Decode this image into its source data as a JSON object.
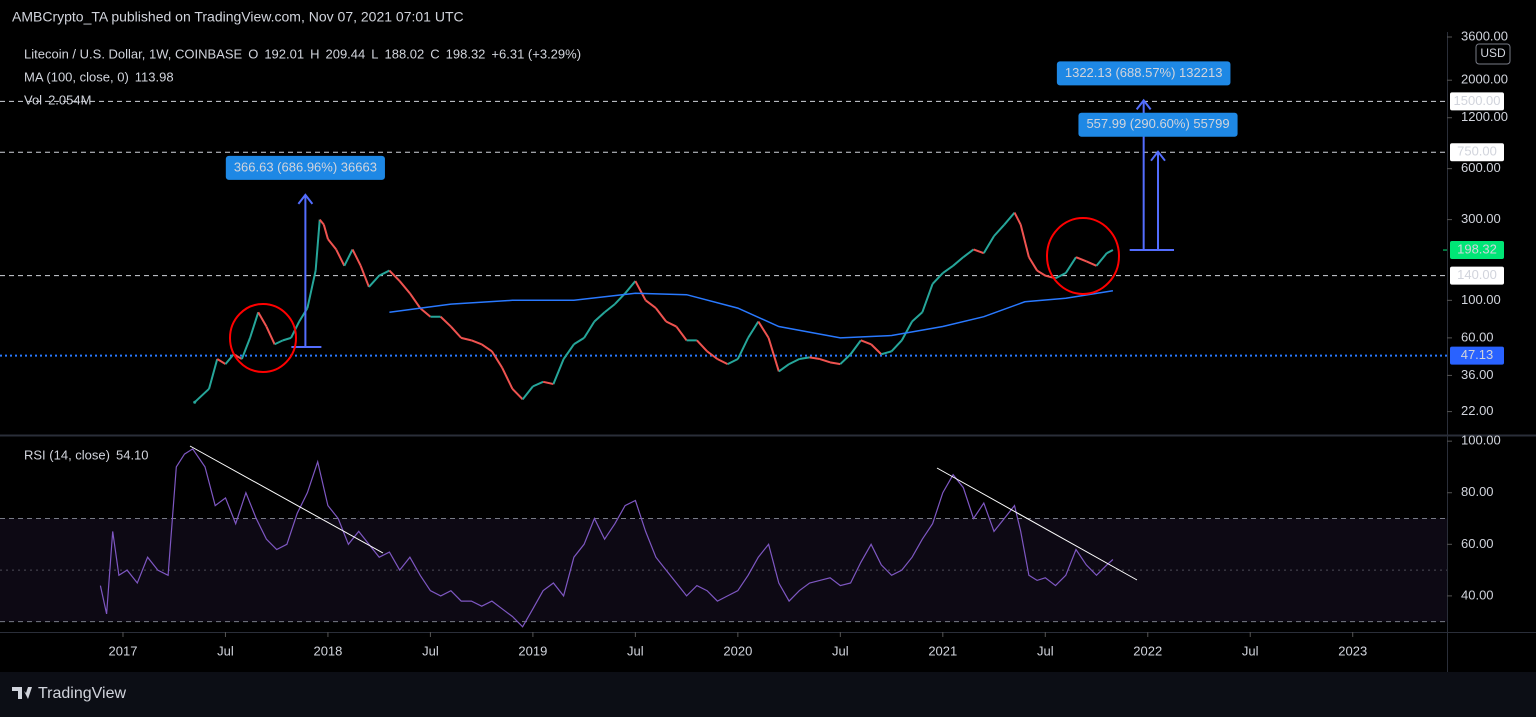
{
  "header": "AMBCrypto_TA published on TradingView.com, Nov 07, 2021 07:01 UTC",
  "footer": "TradingView",
  "chart_data": [
    {
      "type": "line",
      "log_scale": true,
      "xlim": [
        2016.4,
        2023.46
      ],
      "ylim": [
        16,
        3700
      ],
      "yticks": [
        {
          "value": 22,
          "label": "22.00"
        },
        {
          "value": 36,
          "label": "36.00"
        },
        {
          "value": 60,
          "label": "60.00"
        },
        {
          "value": 100,
          "label": "100.00"
        },
        {
          "value": 300,
          "label": "300.00"
        },
        {
          "value": 600,
          "label": "600.00"
        },
        {
          "value": 1200,
          "label": "1200.00"
        },
        {
          "value": 2000,
          "label": "2000.00"
        },
        {
          "value": 3600,
          "label": "3600.00"
        }
      ],
      "currency": "USD",
      "ohlc": [
        {
          "label": "O",
          "value": "192.01"
        },
        {
          "label": "H",
          "value": "209.44"
        },
        {
          "label": "L",
          "value": "188.02"
        },
        {
          "label": "C",
          "value": "198.32"
        }
      ],
      "change": "+6.31 (+3.29%)",
      "ma_value": "113.98",
      "volume_name": "Vol",
      "volume_value": "2.054M",
      "series": [
        {
          "name": "Litecoin / U.S. Dollar, 1W, COINBASE",
          "up_color": "#26a69a",
          "down_color": "#ef5350",
          "x": [
            2017.35,
            2017.42,
            2017.46,
            2017.5,
            2017.54,
            2017.58,
            2017.62,
            2017.66,
            2017.7,
            2017.74,
            2017.78,
            2017.82,
            2017.86,
            2017.9,
            2017.94,
            2017.96,
            2017.98,
            2018.0,
            2018.04,
            2018.08,
            2018.12,
            2018.16,
            2018.2,
            2018.25,
            2018.3,
            2018.35,
            2018.4,
            2018.45,
            2018.5,
            2018.55,
            2018.6,
            2018.65,
            2018.7,
            2018.75,
            2018.8,
            2018.85,
            2018.9,
            2018.95,
            2019.0,
            2019.05,
            2019.1,
            2019.15,
            2019.2,
            2019.25,
            2019.3,
            2019.35,
            2019.4,
            2019.45,
            2019.5,
            2019.55,
            2019.6,
            2019.65,
            2019.7,
            2019.75,
            2019.8,
            2019.85,
            2019.9,
            2019.95,
            2020.0,
            2020.05,
            2020.1,
            2020.15,
            2020.2,
            2020.25,
            2020.3,
            2020.35,
            2020.4,
            2020.45,
            2020.5,
            2020.55,
            2020.6,
            2020.65,
            2020.7,
            2020.75,
            2020.8,
            2020.85,
            2020.9,
            2020.95,
            2021.0,
            2021.05,
            2021.1,
            2021.15,
            2021.2,
            2021.25,
            2021.3,
            2021.35,
            2021.38,
            2021.42,
            2021.46,
            2021.5,
            2021.55,
            2021.6,
            2021.65,
            2021.7,
            2021.75,
            2021.8,
            2021.83
          ],
          "values": [
            25,
            30,
            45,
            42,
            48,
            45,
            60,
            85,
            70,
            55,
            58,
            60,
            75,
            90,
            150,
            300,
            280,
            230,
            200,
            160,
            200,
            160,
            120,
            140,
            150,
            130,
            110,
            90,
            80,
            80,
            70,
            60,
            58,
            55,
            50,
            40,
            30,
            26,
            31,
            33,
            32,
            45,
            55,
            60,
            75,
            85,
            95,
            110,
            130,
            100,
            90,
            75,
            70,
            58,
            58,
            50,
            45,
            42,
            45,
            60,
            75,
            60,
            38,
            42,
            45,
            46,
            45,
            43,
            42,
            48,
            58,
            55,
            48,
            50,
            58,
            75,
            85,
            125,
            145,
            160,
            180,
            200,
            190,
            240,
            280,
            330,
            280,
            180,
            150,
            140,
            135,
            145,
            180,
            170,
            160,
            190,
            198.32
          ]
        },
        {
          "name": "MA (100, close, 0)",
          "color": "#2979ff",
          "x": [
            2018.3,
            2018.6,
            2018.9,
            2019.2,
            2019.5,
            2019.75,
            2020.0,
            2020.2,
            2020.5,
            2020.75,
            2021.0,
            2021.2,
            2021.4,
            2021.6,
            2021.83
          ],
          "values": [
            85,
            95,
            100,
            100,
            110,
            108,
            90,
            70,
            60,
            62,
            70,
            80,
            98,
            103,
            113.98
          ]
        }
      ],
      "levels": [
        {
          "value": 1500,
          "label": "1500.00",
          "style": "dashed",
          "color": "#d1d4dc",
          "label_bg": "#ffffff",
          "label_color": "#000000"
        },
        {
          "value": 750,
          "label": "750.00",
          "style": "dashed",
          "color": "#d1d4dc",
          "label_bg": "#ffffff",
          "label_color": "#000000"
        },
        {
          "value": 140,
          "label": "140.00",
          "style": "dashed",
          "color": "#d1d4dc",
          "label_bg": "#ffffff",
          "label_color": "#000000"
        },
        {
          "value": 47.13,
          "label": "47.13",
          "style": "dotted",
          "color": "#2979ff",
          "label_bg": "#2962ff",
          "label_color": "#ffffff"
        }
      ],
      "last_price": {
        "value": 198.32,
        "label": "198.32",
        "label_bg": "#00e676",
        "label_color": "#000000"
      },
      "measures": [
        {
          "label": "366.63 (686.96%) 36663",
          "x": 2017.89,
          "from": 53,
          "to": 420
        },
        {
          "label": "1322.13 (688.57%) 132213",
          "x": 2021.98,
          "from": 198.32,
          "to": 1520
        },
        {
          "label": "557.99 (290.60%) 55799",
          "x": 2022.05,
          "from": 198.32,
          "to": 756
        }
      ]
    },
    {
      "type": "line",
      "name": "RSI (14, close)",
      "value_label": "54.10",
      "color": "#7e57c2",
      "xlim": [
        2016.4,
        2023.46
      ],
      "ylim": [
        26,
        102
      ],
      "yticks": [
        {
          "value": 40,
          "label": "40.00"
        },
        {
          "value": 60,
          "label": "60.00"
        },
        {
          "value": 80,
          "label": "80.00"
        },
        {
          "value": 100,
          "label": "100.00"
        }
      ],
      "bands": [
        30,
        70
      ],
      "midline": 50,
      "xticks": [
        2017,
        {
          "value": 2017.5,
          "label": "Jul"
        },
        2018,
        {
          "value": 2018.5,
          "label": "Jul"
        },
        2019,
        {
          "value": 2019.5,
          "label": "Jul"
        },
        2020,
        {
          "value": 2020.5,
          "label": "Jul"
        },
        2021,
        {
          "value": 2021.5,
          "label": "Jul"
        },
        2022,
        {
          "value": 2022.5,
          "label": "Jul"
        },
        2023
      ],
      "x": [
        2016.89,
        2016.92,
        2016.95,
        2016.98,
        2017.02,
        2017.07,
        2017.12,
        2017.17,
        2017.22,
        2017.26,
        2017.3,
        2017.34,
        2017.4,
        2017.45,
        2017.5,
        2017.55,
        2017.6,
        2017.65,
        2017.7,
        2017.75,
        2017.8,
        2017.85,
        2017.9,
        2017.95,
        2018.0,
        2018.05,
        2018.1,
        2018.15,
        2018.2,
        2018.25,
        2018.3,
        2018.35,
        2018.4,
        2018.45,
        2018.5,
        2018.55,
        2018.6,
        2018.65,
        2018.7,
        2018.75,
        2018.8,
        2018.85,
        2018.9,
        2018.95,
        2019.0,
        2019.05,
        2019.1,
        2019.15,
        2019.2,
        2019.25,
        2019.3,
        2019.35,
        2019.4,
        2019.45,
        2019.5,
        2019.55,
        2019.6,
        2019.65,
        2019.7,
        2019.75,
        2019.8,
        2019.85,
        2019.9,
        2019.95,
        2020.0,
        2020.05,
        2020.1,
        2020.15,
        2020.2,
        2020.25,
        2020.3,
        2020.35,
        2020.4,
        2020.45,
        2020.5,
        2020.55,
        2020.6,
        2020.65,
        2020.7,
        2020.75,
        2020.8,
        2020.85,
        2020.9,
        2020.95,
        2021.0,
        2021.05,
        2021.1,
        2021.15,
        2021.2,
        2021.25,
        2021.3,
        2021.35,
        2021.38,
        2021.42,
        2021.46,
        2021.5,
        2021.55,
        2021.6,
        2021.65,
        2021.7,
        2021.75,
        2021.8,
        2021.83
      ],
      "values": [
        44,
        33,
        65,
        48,
        50,
        45,
        55,
        50,
        48,
        90,
        95,
        97,
        90,
        75,
        78,
        68,
        80,
        70,
        62,
        58,
        60,
        72,
        80,
        92,
        75,
        70,
        60,
        65,
        60,
        55,
        57,
        50,
        55,
        48,
        42,
        40,
        42,
        38,
        38,
        36,
        38,
        35,
        32,
        28,
        35,
        42,
        45,
        40,
        55,
        60,
        70,
        62,
        68,
        75,
        77,
        65,
        55,
        50,
        45,
        40,
        44,
        42,
        38,
        40,
        42,
        48,
        55,
        60,
        45,
        38,
        42,
        45,
        46,
        47,
        44,
        45,
        53,
        60,
        52,
        48,
        50,
        55,
        62,
        68,
        80,
        87,
        82,
        70,
        76,
        65,
        70,
        75,
        65,
        48,
        46,
        47,
        44,
        48,
        58,
        52,
        48,
        52,
        54.1
      ]
    }
  ]
}
